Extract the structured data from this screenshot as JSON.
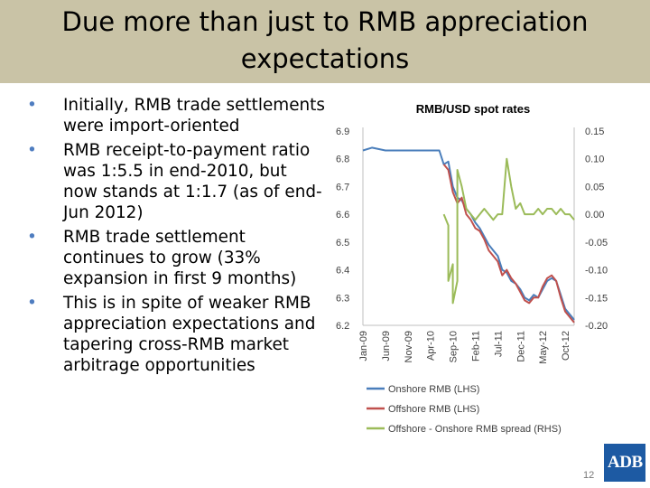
{
  "slide": {
    "title": "Due more than just to RMB appreciation expectations",
    "page_number": "12",
    "logo_text": "ADB"
  },
  "bullets": [
    "Initially, RMB trade settlements were import-oriented",
    "RMB receipt-to-payment ratio was 1:5.5 in end-2010, but now stands at 1:1.7 (as of end-Jun 2012)",
    "RMB trade settlement continues to grow (33% expansion in first 9 months)",
    "This is in spite of weaker RMB appreciation expectations and tapering cross-RMB market arbitrage opportunities"
  ],
  "chart_data": {
    "type": "line",
    "title": "RMB/USD spot rates",
    "x_tick_labels": [
      "Jan-09",
      "Jun-09",
      "Nov-09",
      "Apr-10",
      "Sep-10",
      "Feb-11",
      "Jul-11",
      "Dec-11",
      "May-12",
      "Oct-12"
    ],
    "ylim_left": [
      6.2,
      6.9
    ],
    "y_ticks_left": [
      "6.2",
      "6.3",
      "6.4",
      "6.5",
      "6.6",
      "6.7",
      "6.8",
      "6.9"
    ],
    "ylim_right": [
      -0.2,
      0.15
    ],
    "y_ticks_right": [
      "-0.20",
      "-0.15",
      "-0.10",
      "-0.05",
      "0.00",
      "0.05",
      "0.10",
      "0.15"
    ],
    "legend_position": "bottom",
    "series": [
      {
        "name": "Onshore RMB (LHS)",
        "color": "#4a7ebb",
        "axis": "left",
        "points": [
          [
            "Jan-09",
            6.83
          ],
          [
            "Mar-09",
            6.84
          ],
          [
            "Jun-09",
            6.83
          ],
          [
            "Aug-09",
            6.83
          ],
          [
            "Nov-09",
            6.83
          ],
          [
            "Feb-10",
            6.83
          ],
          [
            "Apr-10",
            6.83
          ],
          [
            "Jun-10",
            6.83
          ],
          [
            "Jul-10",
            6.78
          ],
          [
            "Aug-10",
            6.79
          ],
          [
            "Sep-10",
            6.7
          ],
          [
            "Oct-10",
            6.66
          ],
          [
            "Nov-10",
            6.65
          ],
          [
            "Dec-10",
            6.62
          ],
          [
            "Jan-11",
            6.6
          ],
          [
            "Feb-11",
            6.57
          ],
          [
            "Mar-11",
            6.55
          ],
          [
            "Apr-11",
            6.52
          ],
          [
            "May-11",
            6.49
          ],
          [
            "Jun-11",
            6.47
          ],
          [
            "Jul-11",
            6.45
          ],
          [
            "Aug-11",
            6.4
          ],
          [
            "Sep-11",
            6.39
          ],
          [
            "Oct-11",
            6.36
          ],
          [
            "Nov-11",
            6.35
          ],
          [
            "Dec-11",
            6.33
          ],
          [
            "Jan-12",
            6.3
          ],
          [
            "Feb-12",
            6.29
          ],
          [
            "Mar-12",
            6.31
          ],
          [
            "Apr-12",
            6.3
          ],
          [
            "May-12",
            6.33
          ],
          [
            "Jun-12",
            6.36
          ],
          [
            "Jul-12",
            6.37
          ],
          [
            "Aug-12",
            6.36
          ],
          [
            "Sep-12",
            6.31
          ],
          [
            "Oct-12",
            6.26
          ],
          [
            "Nov-12",
            6.24
          ],
          [
            "Dec-12",
            6.22
          ]
        ]
      },
      {
        "name": "Offshore RMB (LHS)",
        "color": "#c0504d",
        "axis": "left",
        "points": [
          [
            "Jul-10",
            6.78
          ],
          [
            "Aug-10",
            6.76
          ],
          [
            "Sep-10",
            6.68
          ],
          [
            "Oct-10",
            6.64
          ],
          [
            "Nov-10",
            6.66
          ],
          [
            "Dec-10",
            6.6
          ],
          [
            "Jan-11",
            6.58
          ],
          [
            "Feb-11",
            6.55
          ],
          [
            "Mar-11",
            6.54
          ],
          [
            "Apr-11",
            6.51
          ],
          [
            "May-11",
            6.47
          ],
          [
            "Jun-11",
            6.45
          ],
          [
            "Jul-11",
            6.43
          ],
          [
            "Aug-11",
            6.38
          ],
          [
            "Sep-11",
            6.4
          ],
          [
            "Oct-11",
            6.37
          ],
          [
            "Nov-11",
            6.35
          ],
          [
            "Dec-11",
            6.32
          ],
          [
            "Jan-12",
            6.29
          ],
          [
            "Feb-12",
            6.28
          ],
          [
            "Mar-12",
            6.3
          ],
          [
            "Apr-12",
            6.3
          ],
          [
            "May-12",
            6.34
          ],
          [
            "Jun-12",
            6.37
          ],
          [
            "Jul-12",
            6.38
          ],
          [
            "Aug-12",
            6.36
          ],
          [
            "Sep-12",
            6.3
          ],
          [
            "Oct-12",
            6.25
          ],
          [
            "Nov-12",
            6.23
          ],
          [
            "Dec-12",
            6.21
          ]
        ]
      },
      {
        "name": "Offshore - Onshore RMB spread (RHS)",
        "color": "#9bbb59",
        "axis": "right",
        "points": [
          [
            "Jul-10",
            0.0
          ],
          [
            "Aug-10",
            -0.02
          ],
          [
            "Aug-10",
            -0.12
          ],
          [
            "Sep-10",
            -0.09
          ],
          [
            "Sep-10",
            -0.16
          ],
          [
            "Oct-10",
            -0.12
          ],
          [
            "Oct-10",
            0.08
          ],
          [
            "Nov-10",
            0.05
          ],
          [
            "Dec-10",
            0.01
          ],
          [
            "Jan-11",
            0.0
          ],
          [
            "Feb-11",
            -0.01
          ],
          [
            "Mar-11",
            0.0
          ],
          [
            "Apr-11",
            0.01
          ],
          [
            "May-11",
            0.0
          ],
          [
            "Jun-11",
            -0.01
          ],
          [
            "Jul-11",
            0.0
          ],
          [
            "Aug-11",
            0.0
          ],
          [
            "Sep-11",
            0.1
          ],
          [
            "Oct-11",
            0.05
          ],
          [
            "Nov-11",
            0.01
          ],
          [
            "Dec-11",
            0.02
          ],
          [
            "Jan-12",
            0.0
          ],
          [
            "Feb-12",
            0.0
          ],
          [
            "Mar-12",
            0.0
          ],
          [
            "Apr-12",
            0.01
          ],
          [
            "May-12",
            0.0
          ],
          [
            "Jun-12",
            0.01
          ],
          [
            "Jul-12",
            0.01
          ],
          [
            "Aug-12",
            0.0
          ],
          [
            "Sep-12",
            0.01
          ],
          [
            "Oct-12",
            0.0
          ],
          [
            "Nov-12",
            0.0
          ],
          [
            "Dec-12",
            -0.01
          ]
        ]
      }
    ]
  }
}
